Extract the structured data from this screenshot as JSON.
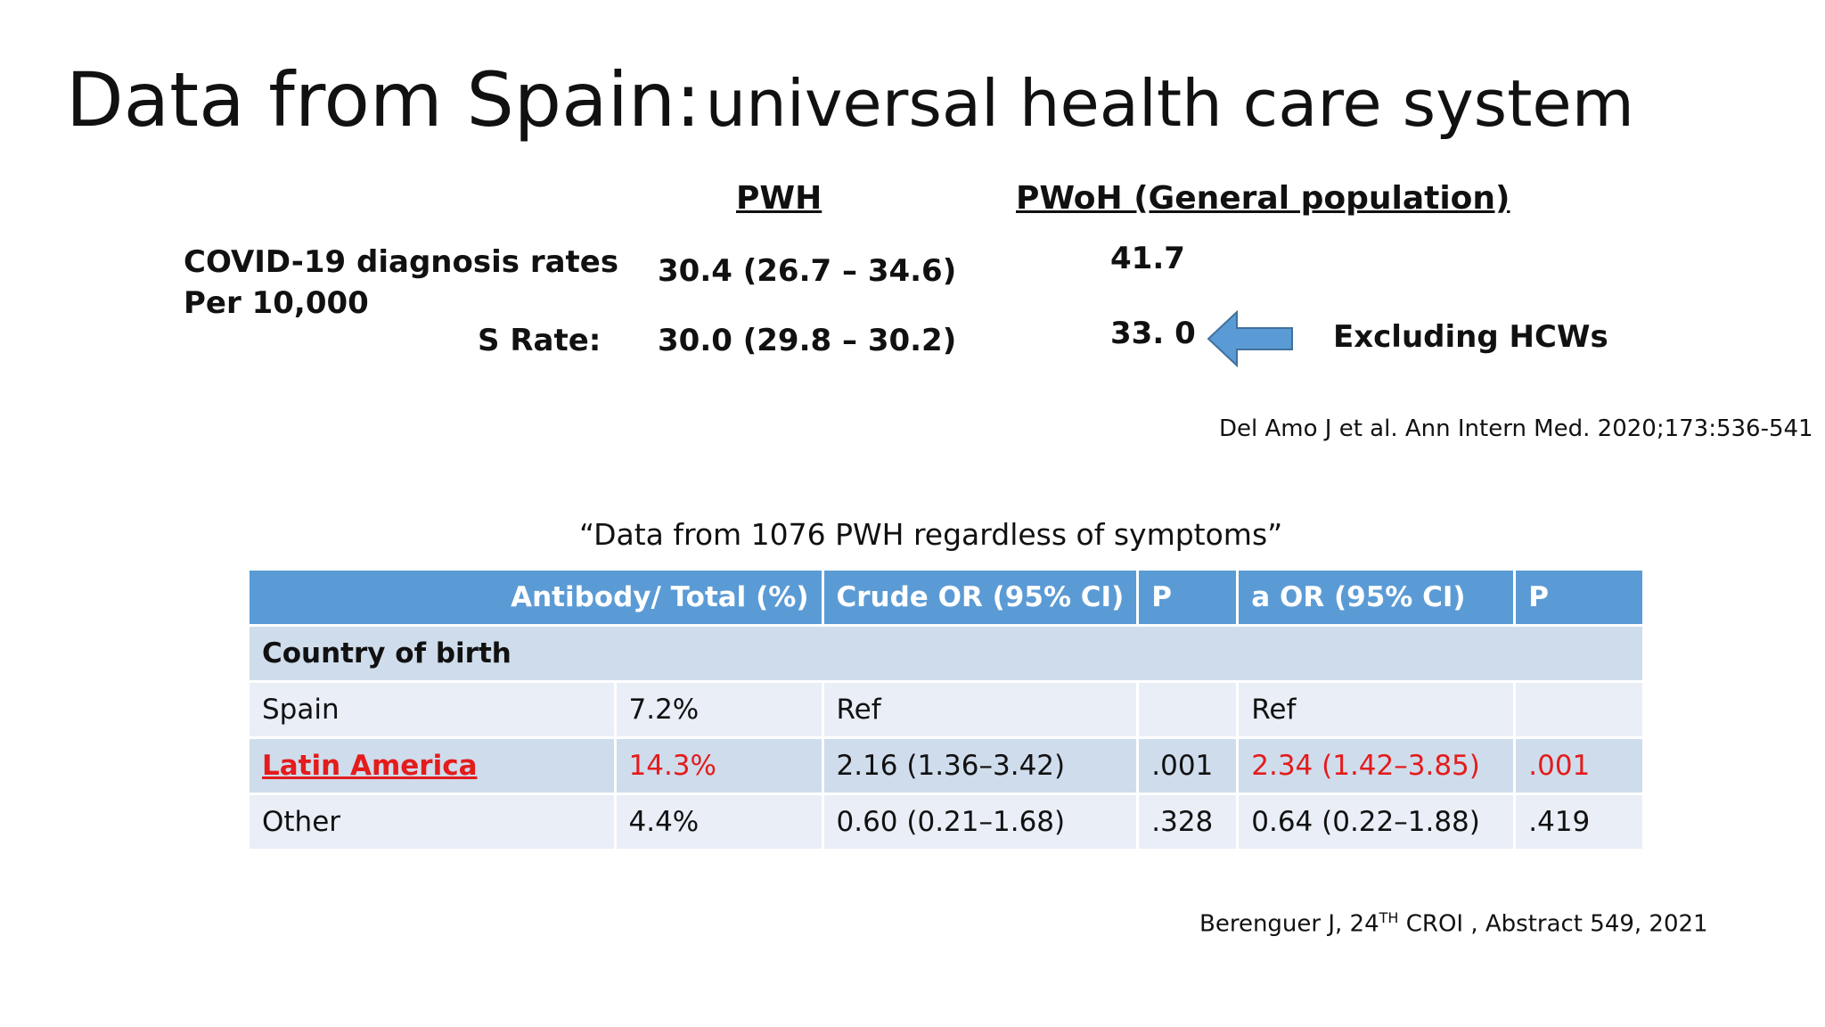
{
  "title": {
    "part1": "Data from Spain:",
    "part2": "universal health care system"
  },
  "columns": {
    "pwh": "PWH",
    "pwoh": "PWoH (General population)"
  },
  "rates": {
    "label_line1": "COVID-19 diagnosis rates",
    "label_line2": "Per 10,000",
    "s_rate_label": "S Rate:",
    "pwh_rate": "30.4 (26.7 – 34.6)",
    "pwh_s_rate": "30.0 (29.8 – 30.2)",
    "pwoh_rate": "41.7",
    "pwoh_s_rate": "33. 0",
    "arrow_note": "Excluding HCWs"
  },
  "reference1": "Del Amo J et al. Ann Intern Med. 2020;173:536-541",
  "quote": "“Data from 1076 PWH regardless of symptoms”",
  "table": {
    "headers": [
      "Antibody/ Total (%)",
      "Crude OR (95% CI)",
      "P",
      "a OR (95% CI)",
      "P"
    ],
    "section": "Country of birth",
    "rows": [
      {
        "label": "Spain",
        "antibody": "7.2%",
        "crude_or": "Ref",
        "p1": "",
        "a_or": "Ref",
        "p2": ""
      },
      {
        "label": "Latin America",
        "antibody": "14.3%",
        "crude_or": "2.16 (1.36–3.42)",
        "p1": ".001",
        "a_or": "2.34 (1.42–3.85)",
        "p2": ".001"
      },
      {
        "label": "Other",
        "antibody": "4.4%",
        "crude_or": "0.60 (0.21–1.68)",
        "p1": ".328",
        "a_or": "0.64 (0.22–1.88)",
        "p2": ".419"
      }
    ]
  },
  "reference2": {
    "prefix": "Berenguer J, 24",
    "superscript": "TH",
    "suffix": " CROI , Abstract  549, 2021"
  },
  "colors": {
    "header_blue": "#5b9bd5",
    "row_dark": "#cfdcec",
    "row_light": "#e9eef7",
    "highlight_red": "#e31c1c",
    "arrow_fill": "#5b9bd5"
  },
  "icons": {
    "arrow": "left-arrow-icon"
  }
}
